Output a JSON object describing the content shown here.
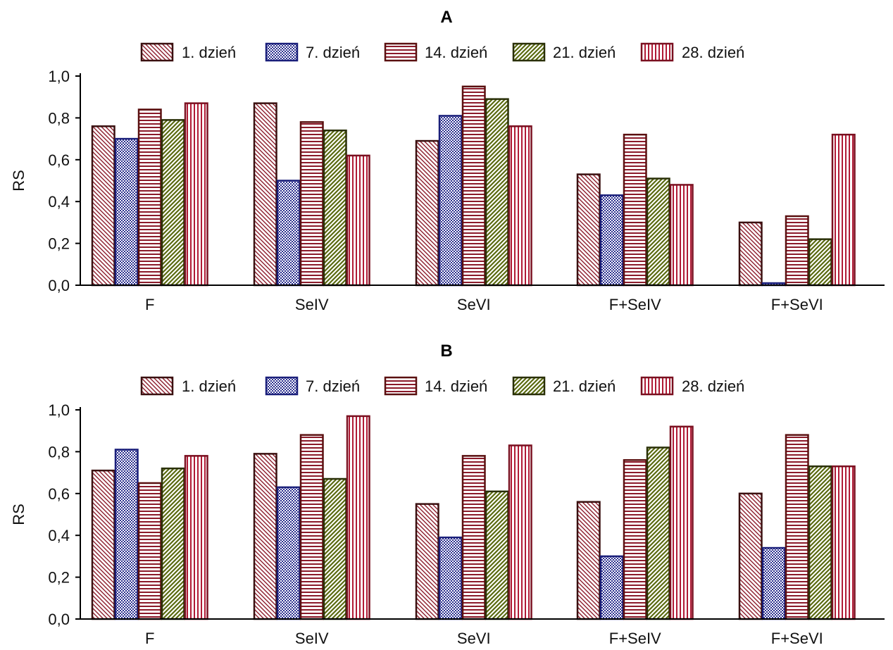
{
  "chart_data": [
    {
      "type": "bar",
      "title": "A",
      "xlabel": "",
      "ylabel": "RS",
      "ylim": [
        0,
        1.0
      ],
      "yticks": [
        "0,0",
        "0,2",
        "0,4",
        "0,6",
        "0,8",
        "1,0"
      ],
      "legend_position": "top",
      "grid": false,
      "categories": [
        "F",
        "SeIV",
        "SeVI",
        "F+SeIV",
        "F+SeVI"
      ],
      "series": [
        {
          "name": "1. dzień",
          "pattern": "diag-back",
          "color": "#8b1a2a",
          "edge": "#3a1010",
          "values": [
            0.76,
            0.87,
            0.69,
            0.53,
            0.3
          ]
        },
        {
          "name": "7. dzień",
          "pattern": "dots",
          "color": "#2b2f8f",
          "edge": "#1a1f7a",
          "values": [
            0.7,
            0.5,
            0.81,
            0.43,
            0.01
          ]
        },
        {
          "name": "14. dzień",
          "pattern": "horizontal",
          "color": "#8b1a2a",
          "edge": "#5a1010",
          "values": [
            0.84,
            0.78,
            0.95,
            0.72,
            0.33
          ]
        },
        {
          "name": "21. dzień",
          "pattern": "diag-forward",
          "color": "#5a6a10",
          "edge": "#2a3008",
          "values": [
            0.79,
            0.74,
            0.89,
            0.51,
            0.22
          ]
        },
        {
          "name": "28. dzień",
          "pattern": "vertical",
          "color": "#b01a35",
          "edge": "#7a1020",
          "values": [
            0.87,
            0.62,
            0.76,
            0.48,
            0.72
          ]
        }
      ]
    },
    {
      "type": "bar",
      "title": "B",
      "xlabel": "",
      "ylabel": "RS",
      "ylim": [
        0,
        1.0
      ],
      "yticks": [
        "0,0",
        "0,2",
        "0,4",
        "0,6",
        "0,8",
        "1,0"
      ],
      "legend_position": "top",
      "grid": false,
      "categories": [
        "F",
        "SeIV",
        "SeVI",
        "F+SeIV",
        "F+SeVI"
      ],
      "series": [
        {
          "name": "1. dzień",
          "pattern": "diag-back",
          "color": "#8b1a2a",
          "edge": "#3a1010",
          "values": [
            0.71,
            0.79,
            0.55,
            0.56,
            0.6
          ]
        },
        {
          "name": "7. dzień",
          "pattern": "dots",
          "color": "#2b2f8f",
          "edge": "#1a1f7a",
          "values": [
            0.81,
            0.63,
            0.39,
            0.3,
            0.34
          ]
        },
        {
          "name": "14. dzień",
          "pattern": "horizontal",
          "color": "#8b1a2a",
          "edge": "#5a1010",
          "values": [
            0.65,
            0.88,
            0.78,
            0.76,
            0.88
          ]
        },
        {
          "name": "21. dzień",
          "pattern": "diag-forward",
          "color": "#5a6a10",
          "edge": "#2a3008",
          "values": [
            0.72,
            0.67,
            0.61,
            0.82,
            0.73
          ]
        },
        {
          "name": "28. dzień",
          "pattern": "vertical",
          "color": "#b01a35",
          "edge": "#7a1020",
          "values": [
            0.78,
            0.97,
            0.83,
            0.92,
            0.73
          ]
        }
      ]
    }
  ]
}
